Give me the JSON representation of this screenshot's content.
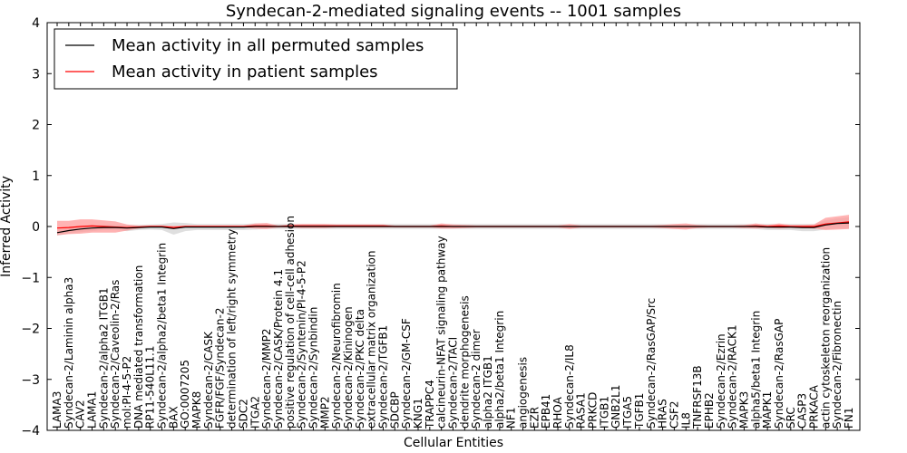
{
  "chart_data": {
    "type": "line",
    "title": "Syndecan-2-mediated signaling events -- 1001 samples",
    "xlabel": "Cellular Entities",
    "ylabel": "Inferred Activity",
    "ylim": [
      -4,
      4
    ],
    "yticks": [
      4,
      3,
      2,
      1,
      0,
      -1,
      -2,
      -3,
      -4
    ],
    "ytick_labels": [
      "4",
      "3",
      "2",
      "1",
      "0",
      "−1",
      "−2",
      "−3",
      "−4"
    ],
    "legend_position": "top-left",
    "grid": false,
    "categories": [
      "LAMA3",
      "Syndecan-2/Laminin alpha3",
      "CAV2",
      "LAMA1",
      "Syndecan-2/alpha2 ITGB1",
      "Syndecan-2/Caveolin-2/Ras",
      "mol:PI-4-5-P2",
      "DNA mediated transformation",
      "RP11-540L11.1",
      "Syndecan-2/alpha2/beta1 Integrin",
      "BAX",
      "GO:0007205",
      "MAPK8",
      "Syndecan-2/CASK",
      "FGFR/FGF/Syndecan-2",
      "determination of left/right symmetry",
      "SDC2",
      "ITGA2",
      "Syndecan-2/MMP2",
      "Syndecan-2/CASK/Protein 4.1",
      "positive regulation of cell-cell adhesion",
      "Syndecan-2/Syntenin/PI-4-5-P2",
      "Syndecan-2/Synbindin",
      "MMP2",
      "Syndecan-2/Neurofibromin",
      "Syndecan-2/Kininogen",
      "Syndecan-2/PKC delta",
      "extracellular matrix organization",
      "Syndecan-2/TGFB1",
      "SDCBP",
      "Syndecan-2/GM-CSF",
      "KNG1",
      "TRAPPC4",
      "calcineurin-NFAT signaling pathway",
      "Syndecan-2/TACI",
      "dendrite morphogenesis",
      "Syndecan-2 dimer",
      "alpha2 ITGB1",
      "alpha2/beta1 Integrin",
      "NF1",
      "angiogenesis",
      "EZR",
      "EPB41",
      "RHOA",
      "Syndecan-2/IL8",
      "RASA1",
      "PRKCD",
      "ITGB1",
      "GNB2L1",
      "ITGA5",
      "TGFB1",
      "Syndecan-2/RasGAP/Src",
      "HRAS",
      "CSF2",
      "IL8",
      "TNFRSF13B",
      "EPHB2",
      "Syndecan-2/Ezrin",
      "Syndecan-2/RACK1",
      "MAPK3",
      "alpha5/beta1 Integrin",
      "MAPK1",
      "Syndecan-2/RasGAP",
      "SRC",
      "CASP3",
      "PRKACA",
      "actin cytoskeleton reorganization",
      "Syndecan-2/Fibronectin",
      "FN1"
    ],
    "series": [
      {
        "name": "Mean activity in all permuted samples",
        "color": "#000000",
        "values": [
          -0.12,
          -0.08,
          -0.05,
          -0.03,
          -0.02,
          -0.02,
          -0.03,
          -0.02,
          -0.01,
          -0.01,
          -0.04,
          -0.01,
          -0.01,
          -0.01,
          -0.01,
          -0.01,
          -0.01,
          0.0,
          0.0,
          0.0,
          0.0,
          0.0,
          0.0,
          0.0,
          0.0,
          0.0,
          0.0,
          0.0,
          0.0,
          0.0,
          0.0,
          0.0,
          0.0,
          0.0,
          0.0,
          0.0,
          0.0,
          0.0,
          0.0,
          0.0,
          0.0,
          0.0,
          0.0,
          0.0,
          0.0,
          0.0,
          0.0,
          0.0,
          0.0,
          0.0,
          0.0,
          0.0,
          0.0,
          0.0,
          0.0,
          0.0,
          0.0,
          0.0,
          0.0,
          0.0,
          0.0,
          -0.01,
          -0.01,
          -0.01,
          -0.02,
          -0.02,
          0.03,
          0.06,
          0.07
        ],
        "band": [
          0.06,
          0.06,
          0.06,
          0.06,
          0.05,
          0.05,
          0.06,
          0.05,
          0.05,
          0.06,
          0.12,
          0.08,
          0.06,
          0.06,
          0.06,
          0.06,
          0.06,
          0.06,
          0.05,
          0.05,
          0.05,
          0.05,
          0.05,
          0.05,
          0.05,
          0.05,
          0.05,
          0.05,
          0.05,
          0.05,
          0.05,
          0.05,
          0.05,
          0.05,
          0.05,
          0.05,
          0.05,
          0.05,
          0.05,
          0.05,
          0.05,
          0.05,
          0.05,
          0.05,
          0.05,
          0.05,
          0.05,
          0.05,
          0.05,
          0.05,
          0.05,
          0.05,
          0.05,
          0.05,
          0.05,
          0.05,
          0.05,
          0.05,
          0.05,
          0.05,
          0.05,
          0.06,
          0.06,
          0.06,
          0.07,
          0.07,
          0.09,
          0.1,
          0.11
        ]
      },
      {
        "name": "Mean activity in patient samples",
        "color": "#ff0000",
        "fill": "#ff9999",
        "values": [
          -0.03,
          -0.02,
          0.0,
          0.01,
          0.0,
          -0.01,
          -0.02,
          -0.01,
          0.0,
          0.0,
          -0.02,
          0.0,
          0.0,
          0.0,
          0.0,
          0.0,
          0.0,
          0.01,
          0.01,
          0.0,
          0.01,
          0.01,
          0.01,
          0.01,
          0.01,
          0.01,
          0.01,
          0.01,
          0.01,
          0.0,
          0.0,
          0.0,
          0.0,
          0.01,
          0.0,
          0.0,
          0.0,
          0.0,
          0.0,
          0.0,
          0.0,
          0.0,
          0.0,
          0.0,
          0.0,
          0.0,
          0.0,
          0.0,
          0.0,
          0.0,
          0.0,
          0.0,
          0.0,
          0.0,
          0.0,
          0.0,
          0.0,
          0.0,
          0.0,
          0.0,
          0.01,
          0.0,
          0.01,
          0.0,
          0.0,
          0.0,
          0.05,
          0.07,
          0.09
        ],
        "band": [
          0.14,
          0.13,
          0.14,
          0.13,
          0.12,
          0.11,
          0.06,
          0.03,
          0.02,
          0.02,
          0.03,
          0.02,
          0.02,
          0.02,
          0.02,
          0.02,
          0.02,
          0.05,
          0.06,
          0.02,
          0.03,
          0.04,
          0.04,
          0.04,
          0.03,
          0.03,
          0.03,
          0.03,
          0.03,
          0.02,
          0.02,
          0.02,
          0.02,
          0.05,
          0.04,
          0.03,
          0.02,
          0.02,
          0.02,
          0.02,
          0.02,
          0.02,
          0.02,
          0.02,
          0.05,
          0.02,
          0.02,
          0.02,
          0.02,
          0.02,
          0.02,
          0.02,
          0.03,
          0.05,
          0.06,
          0.03,
          0.02,
          0.02,
          0.02,
          0.03,
          0.05,
          0.03,
          0.05,
          0.03,
          0.03,
          0.04,
          0.12,
          0.13,
          0.14
        ]
      }
    ]
  }
}
